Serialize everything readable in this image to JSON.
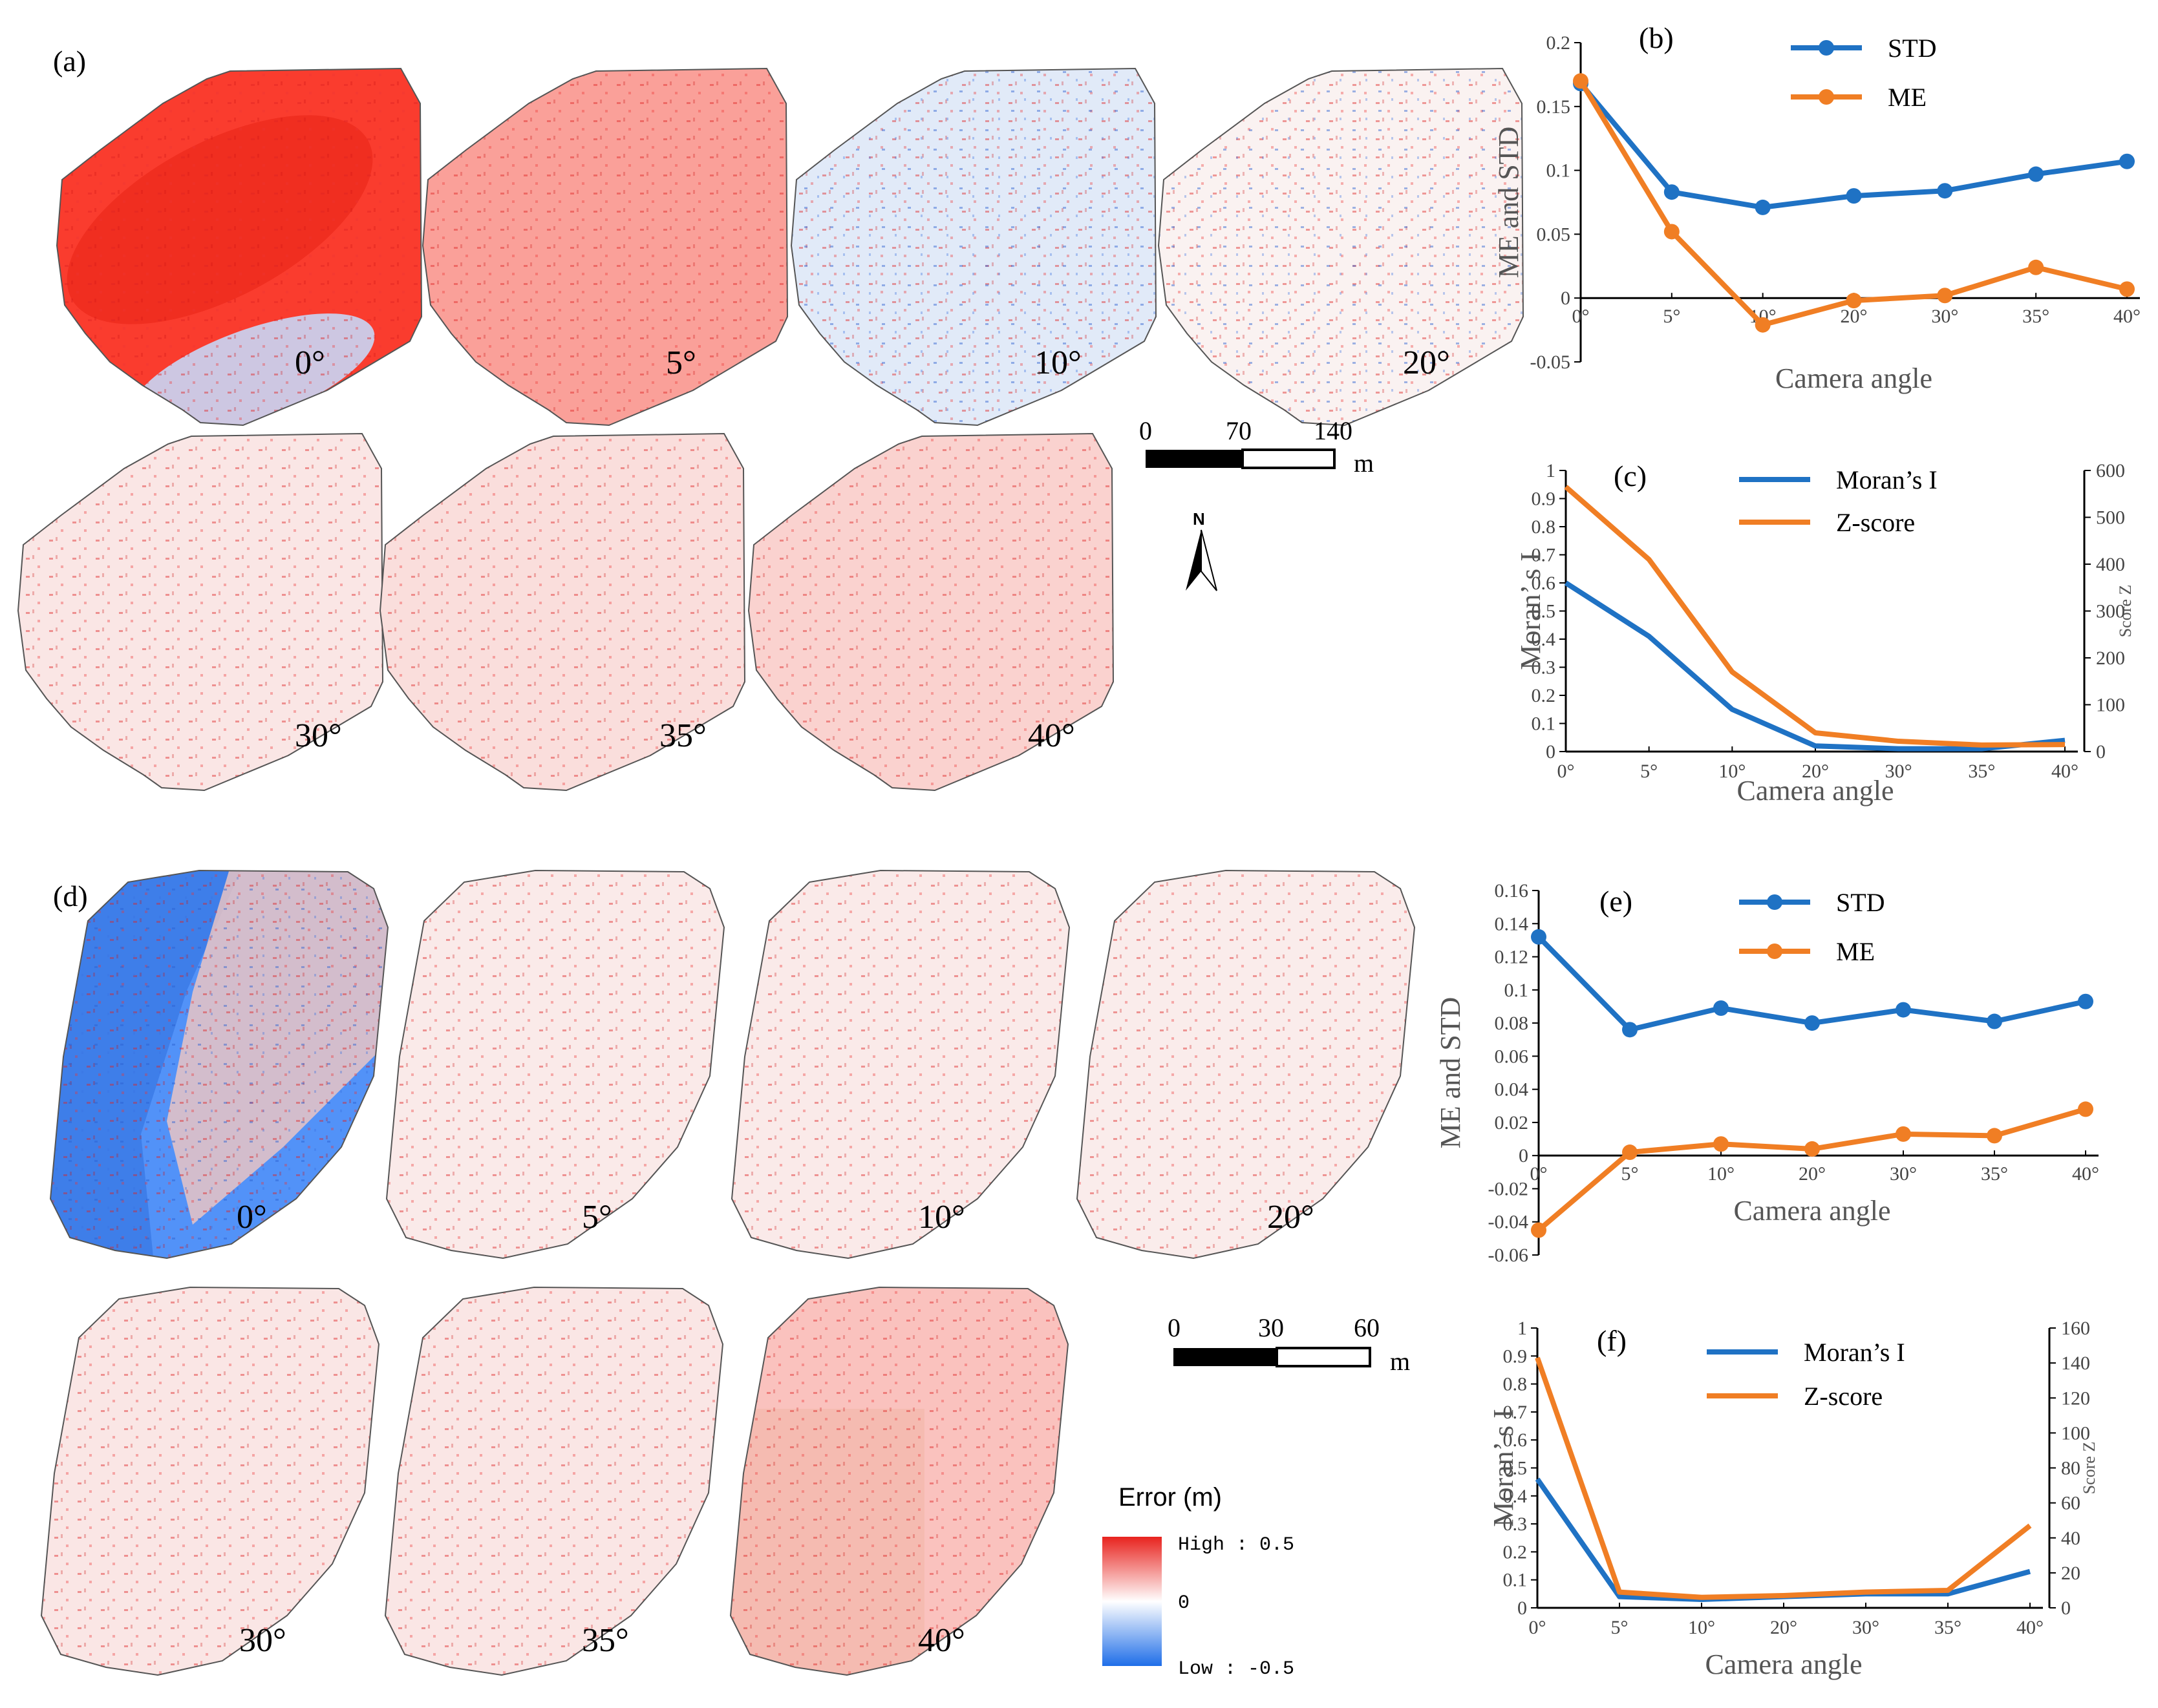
{
  "figure": {
    "panels": {
      "a": "(a)",
      "b": "(b)",
      "c": "(c)",
      "d": "(d)",
      "e": "(e)",
      "f": "(f)"
    },
    "map_set_1": {
      "angle_labels": [
        "0°",
        "5°",
        "10°",
        "20°",
        "30°",
        "35°",
        "40°"
      ],
      "intensity": [
        0.95,
        0.45,
        -0.12,
        0.04,
        0.1,
        0.14,
        0.2
      ],
      "scale_bar": {
        "ticks": [
          "0",
          "70",
          "140"
        ],
        "unit": "m"
      },
      "north": "N"
    },
    "map_set_2": {
      "angle_labels": [
        "0°",
        "5°",
        "10°",
        "20°",
        "30°",
        "35°",
        "40°"
      ],
      "intensity": [
        -0.8,
        0.08,
        0.08,
        0.07,
        0.1,
        0.1,
        0.28
      ],
      "scale_bar": {
        "ticks": [
          "0",
          "30",
          "60"
        ],
        "unit": "m"
      }
    },
    "colorbar": {
      "title": "Error (m)",
      "high_label": "High : 0.5",
      "mid_label": "0",
      "low_label": "Low : -0.5",
      "colors": {
        "high": "#e8231e",
        "mid": "#ffffff",
        "low": "#1f6ee8"
      }
    }
  },
  "chart_data": [
    {
      "id": "b",
      "type": "line",
      "categories": [
        "0°",
        "5°",
        "10°",
        "20°",
        "30°",
        "35°",
        "40°"
      ],
      "series": [
        {
          "name": "STD",
          "values": [
            0.168,
            0.083,
            0.071,
            0.08,
            0.084,
            0.097,
            0.107
          ],
          "color": "#1f72c4",
          "markers": true
        },
        {
          "name": "ME",
          "values": [
            0.17,
            0.052,
            -0.021,
            -0.002,
            0.002,
            0.024,
            0.007
          ],
          "color": "#f07e24",
          "markers": true
        }
      ],
      "xlabel": "Camera angle",
      "ylabel": "ME and STD",
      "ylim": [
        -0.05,
        0.2
      ],
      "yticks": [
        "-0.05",
        "0",
        "0.05",
        "0.1",
        "0.15",
        "0.2"
      ]
    },
    {
      "id": "c",
      "type": "line",
      "categories": [
        "0°",
        "5°",
        "10°",
        "20°",
        "30°",
        "35°",
        "40°"
      ],
      "series": [
        {
          "name": "Moran’s I",
          "axis": "left",
          "values": [
            0.6,
            0.41,
            0.15,
            0.02,
            0.01,
            0.01,
            0.04
          ],
          "color": "#1f72c4"
        },
        {
          "name": "Z-score",
          "axis": "right",
          "values": [
            565,
            410,
            170,
            40,
            22,
            14,
            15
          ],
          "color": "#f07e24"
        }
      ],
      "xlabel": "Camera angle",
      "ylabel": "Moran’ s I",
      "y2label": "Score Z",
      "ylim": [
        0,
        1
      ],
      "y2lim": [
        0,
        600
      ],
      "yticks": [
        "0",
        "0.1",
        "0.2",
        "0.3",
        "0.4",
        "0.5",
        "0.6",
        "0.7",
        "0.8",
        "0.9",
        "1"
      ],
      "y2ticks": [
        "0",
        "100",
        "200",
        "300",
        "400",
        "500",
        "600"
      ]
    },
    {
      "id": "e",
      "type": "line",
      "categories": [
        "0°",
        "5°",
        "10°",
        "20°",
        "30°",
        "35°",
        "40°"
      ],
      "series": [
        {
          "name": "STD",
          "values": [
            0.132,
            0.076,
            0.089,
            0.08,
            0.088,
            0.081,
            0.093
          ],
          "color": "#1f72c4",
          "markers": true
        },
        {
          "name": "ME",
          "values": [
            -0.045,
            0.002,
            0.007,
            0.004,
            0.013,
            0.012,
            0.028
          ],
          "color": "#f07e24",
          "markers": true
        }
      ],
      "xlabel": "Camera angle",
      "ylabel": "ME and STD",
      "ylim": [
        -0.06,
        0.16
      ],
      "yticks": [
        "-0.06",
        "-0.04",
        "-0.02",
        "0",
        "0.02",
        "0.04",
        "0.06",
        "0.08",
        "0.1",
        "0.12",
        "0.14",
        "0.16"
      ]
    },
    {
      "id": "f",
      "type": "line",
      "categories": [
        "0°",
        "5°",
        "10°",
        "20°",
        "30°",
        "35°",
        "40°"
      ],
      "series": [
        {
          "name": "Moran’s I",
          "axis": "left",
          "values": [
            0.46,
            0.04,
            0.03,
            0.04,
            0.05,
            0.05,
            0.13
          ],
          "color": "#1f72c4"
        },
        {
          "name": "Z-score",
          "axis": "right",
          "values": [
            143,
            9,
            6,
            7,
            9,
            10,
            47
          ],
          "color": "#f07e24"
        }
      ],
      "xlabel": "Camera angle",
      "ylabel": "Moran’ s I",
      "y2label": "Score Z",
      "ylim": [
        0,
        1
      ],
      "y2lim": [
        0,
        160
      ],
      "yticks": [
        "0",
        "0.1",
        "0.2",
        "0.3",
        "0.4",
        "0.5",
        "0.6",
        "0.7",
        "0.8",
        "0.9",
        "1"
      ],
      "y2ticks": [
        "0",
        "20",
        "40",
        "60",
        "80",
        "100",
        "120",
        "140",
        "160"
      ]
    }
  ]
}
